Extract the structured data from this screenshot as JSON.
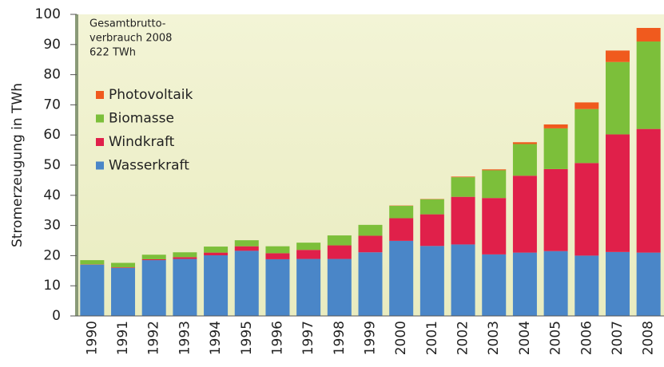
{
  "chart_data": {
    "type": "stacked_bar",
    "y_label": "Stromerzeugung in TWh",
    "annotation": [
      "Gesamtbrutto-",
      "verbrauch 2008",
      "622 TWh"
    ],
    "categories": [
      "1990",
      "1991",
      "1992",
      "1993",
      "1994",
      "1995",
      "1996",
      "1997",
      "1998",
      "1999",
      "2000",
      "2001",
      "2002",
      "2003",
      "2004",
      "2005",
      "2006",
      "2007",
      "2008"
    ],
    "series": [
      {
        "name": "Wasserkraft",
        "color": "#4a86c8",
        "values": [
          17.0,
          15.9,
          18.5,
          18.9,
          20.1,
          21.6,
          18.8,
          18.9,
          18.9,
          21.1,
          24.9,
          23.2,
          23.7,
          20.4,
          21.0,
          21.5,
          20.0,
          21.2,
          21.0
        ]
      },
      {
        "name": "Windkraft",
        "color": "#e0204a",
        "values": [
          0.1,
          0.2,
          0.3,
          0.6,
          0.9,
          1.5,
          2.0,
          3.0,
          4.5,
          5.5,
          7.5,
          10.5,
          15.8,
          18.7,
          25.5,
          27.2,
          30.7,
          39.0,
          41.0
        ]
      },
      {
        "name": "Biomasse",
        "color": "#7cbf3a",
        "values": [
          1.4,
          1.5,
          1.5,
          1.6,
          2.0,
          2.0,
          2.3,
          2.4,
          3.3,
          3.6,
          4.1,
          5.0,
          6.5,
          9.2,
          10.5,
          13.5,
          17.9,
          24.0,
          29.0
        ]
      },
      {
        "name": "Photovoltaik",
        "color": "#f05a1e",
        "values": [
          0.0,
          0.0,
          0.0,
          0.0,
          0.0,
          0.0,
          0.0,
          0.0,
          0.0,
          0.0,
          0.1,
          0.1,
          0.2,
          0.3,
          0.6,
          1.3,
          2.2,
          3.8,
          4.5
        ]
      }
    ],
    "ylim": [
      0,
      100
    ],
    "yticks": [
      0,
      10,
      20,
      30,
      40,
      50,
      60,
      70,
      80,
      90,
      100
    ]
  }
}
